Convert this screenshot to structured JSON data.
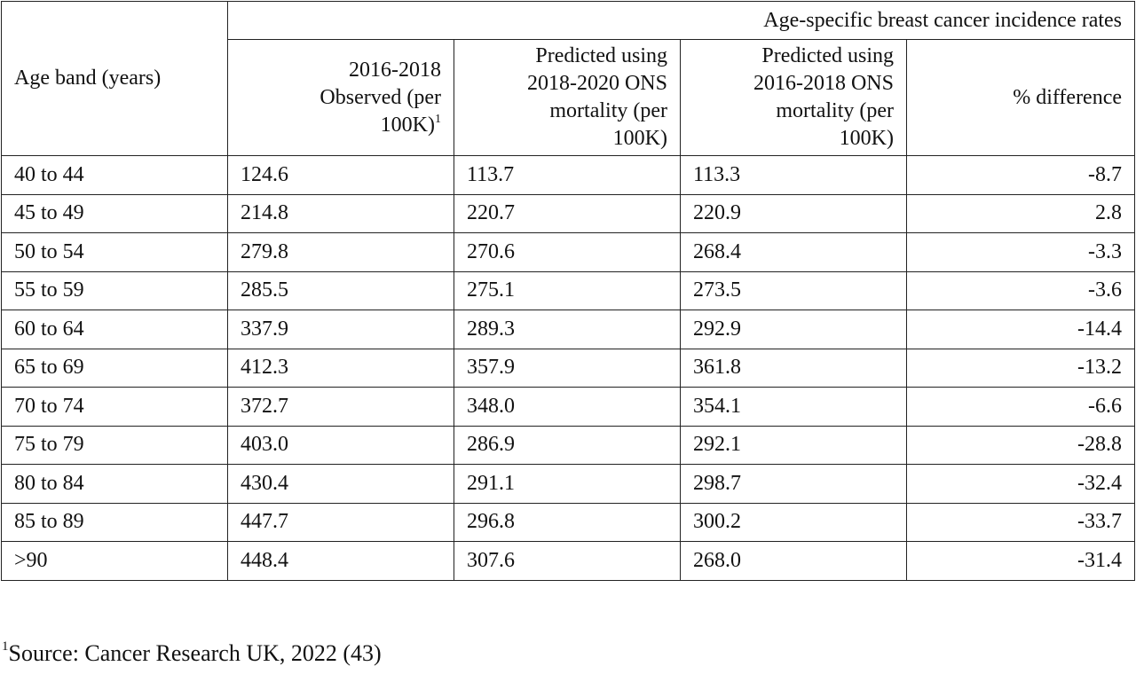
{
  "table": {
    "super_header": "Age-specific breast cancer incidence rates",
    "columns": {
      "age_band": "Age band (years)",
      "observed": [
        "2016-2018",
        "Observed (per",
        "100K)"
      ],
      "observed_sup": "1",
      "pred_2018_2020": [
        "Predicted using",
        "2018-2020 ONS",
        "mortality (per",
        "100K)"
      ],
      "pred_2016_2018": [
        "Predicted using",
        "2016-2018 ONS",
        "mortality (per",
        "100K)"
      ],
      "pct_diff": "% difference"
    },
    "rows": [
      {
        "age": "40 to 44",
        "observed": "124.6",
        "pred_2018_2020": "113.7",
        "pred_2016_2018": "113.3",
        "pct_diff": "-8.7"
      },
      {
        "age": "45 to 49",
        "observed": "214.8",
        "pred_2018_2020": "220.7",
        "pred_2016_2018": "220.9",
        "pct_diff": "2.8"
      },
      {
        "age": "50 to 54",
        "observed": "279.8",
        "pred_2018_2020": "270.6",
        "pred_2016_2018": "268.4",
        "pct_diff": "-3.3"
      },
      {
        "age": "55 to 59",
        "observed": "285.5",
        "pred_2018_2020": "275.1",
        "pred_2016_2018": "273.5",
        "pct_diff": "-3.6"
      },
      {
        "age": "60 to 64",
        "observed": "337.9",
        "pred_2018_2020": "289.3",
        "pred_2016_2018": "292.9",
        "pct_diff": "-14.4"
      },
      {
        "age": "65 to 69",
        "observed": "412.3",
        "pred_2018_2020": "357.9",
        "pred_2016_2018": "361.8",
        "pct_diff": "-13.2"
      },
      {
        "age": "70 to 74",
        "observed": "372.7",
        "pred_2018_2020": "348.0",
        "pred_2016_2018": "354.1",
        "pct_diff": "-6.6"
      },
      {
        "age": "75 to 79",
        "observed": "403.0",
        "pred_2018_2020": "286.9",
        "pred_2016_2018": "292.1",
        "pct_diff": "-28.8"
      },
      {
        "age": "80 to 84",
        "observed": "430.4",
        "pred_2018_2020": "291.1",
        "pred_2016_2018": "298.7",
        "pct_diff": "-32.4"
      },
      {
        "age": "85 to 89",
        "observed": "447.7",
        "pred_2018_2020": "296.8",
        "pred_2016_2018": "300.2",
        "pct_diff": "-33.7"
      },
      {
        "age": ">90",
        "observed": "448.4",
        "pred_2018_2020": "307.6",
        "pred_2016_2018": "268.0",
        "pct_diff": "-31.4"
      }
    ]
  },
  "footnote": {
    "sup": "1",
    "text": "Source: Cancer Research UK, 2022 (43)"
  }
}
